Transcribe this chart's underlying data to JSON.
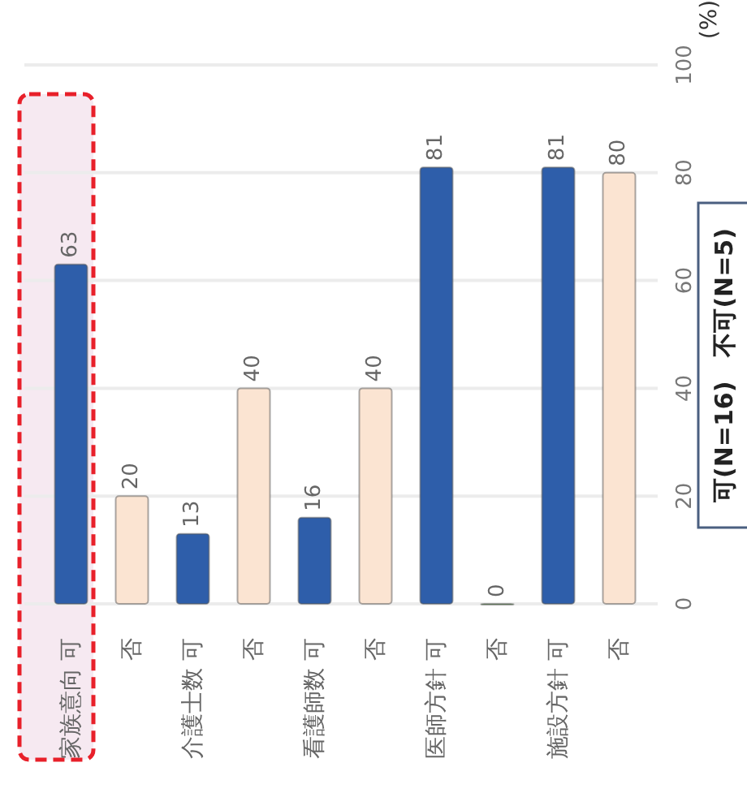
{
  "chart_data": {
    "type": "bar",
    "categories": [
      "家族意向 可",
      "否",
      "介護士数 可",
      "否",
      "看護師数 可",
      "否",
      "医師方針 可",
      "否",
      "施設方針 可",
      "否"
    ],
    "values": [
      63,
      20,
      13,
      40,
      16,
      40,
      81,
      0,
      81,
      80
    ],
    "colors": [
      "#2e5eaa",
      "#fbe4d2",
      "#2e5eaa",
      "#fbe4d2",
      "#2e5eaa",
      "#fbe4d2",
      "#2e5eaa",
      "#6d9a62",
      "#2e5eaa",
      "#fbe4d2"
    ],
    "ylabel": "(%)",
    "ylim": [
      0,
      100
    ],
    "yticks": [
      0,
      20,
      40,
      60,
      80,
      100
    ],
    "grid": "y",
    "data_labels": true,
    "annotations": [
      "可(N=16)　不可(N=5)"
    ]
  }
}
